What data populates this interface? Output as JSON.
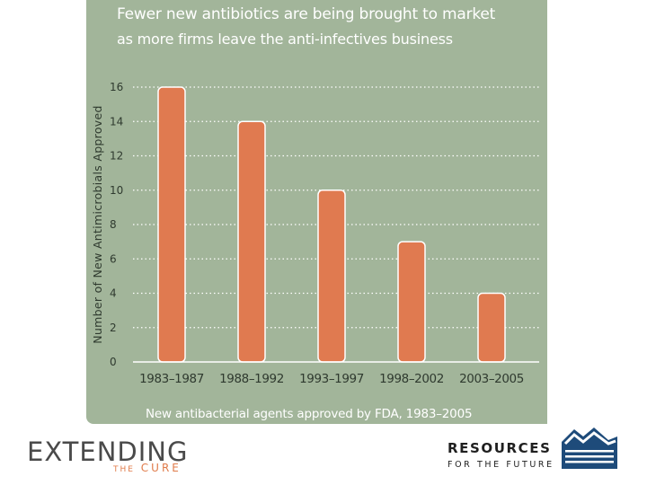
{
  "chart_data": {
    "type": "bar",
    "title_line1": "Fewer new antibiotics are being brought to market",
    "title_line2": "as more firms leave the anti-infectives business",
    "ylabel": "Number of New Antimicrobials Approved",
    "caption": "New antibacterial agents approved by FDA, 1983–2005",
    "categories": [
      "1983–1987",
      "1988–1992",
      "1993–1997",
      "1998–2002",
      "2003–2005"
    ],
    "values": [
      16,
      14,
      10,
      7,
      4
    ],
    "ylim": [
      0,
      16
    ],
    "yticks": [
      0,
      2,
      4,
      6,
      8,
      10,
      12,
      14,
      16
    ],
    "grid": true,
    "colors": {
      "bar": "#e07a50",
      "bar_border": "#ffffff",
      "panel": "#a2b59a",
      "text": "#ffffff",
      "axis_text": "#2f3a2f",
      "grid": "#ffffff"
    }
  },
  "logos": {
    "left_main": "EXTENDING",
    "left_the": "THE",
    "left_cure": "CURE",
    "right_main": "RESOURCES",
    "right_sub": "FOR THE FUTURE"
  }
}
